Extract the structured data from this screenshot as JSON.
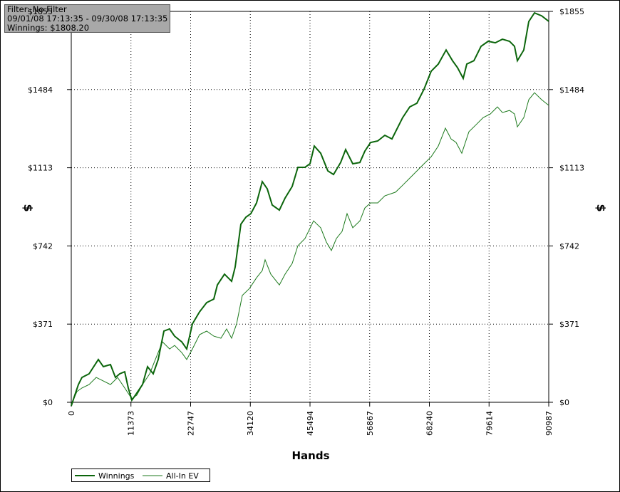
{
  "chart_data": {
    "type": "line",
    "info": [
      "Filter: No Filter",
      "09/01/08 17:13:35 - 09/30/08 17:13:35",
      "Winnings: $1808.20"
    ],
    "xlabel": "Hands",
    "ylabel": "$",
    "y2label": "$",
    "xlim": [
      0,
      90987
    ],
    "xticks": [
      0,
      11373,
      22747,
      34120,
      45494,
      56867,
      68240,
      79614,
      90987
    ],
    "ylim": [
      0,
      1855
    ],
    "yticks": [
      {
        "value": 0,
        "label": "$0"
      },
      {
        "value": 371,
        "label": "$371"
      },
      {
        "value": 742,
        "label": "$742"
      },
      {
        "value": 1113,
        "label": "$1113"
      },
      {
        "value": 1484,
        "label": "$1484"
      },
      {
        "value": 1855,
        "label": "$1855"
      }
    ],
    "grid": true,
    "series": [
      {
        "name": "Winnings",
        "color": "#0b650b",
        "width": 2,
        "x": [
          0,
          679,
          1358,
          2037,
          3395,
          5160,
          6111,
          7469,
          8420,
          9234,
          10185,
          10864,
          11543,
          12222,
          13580,
          14531,
          15617,
          16568,
          17654,
          18740,
          19691,
          21049,
          22000,
          23086,
          24444,
          25802,
          27160,
          27839,
          29197,
          30555,
          31234,
          32320,
          33271,
          34222,
          35308,
          36394,
          37345,
          38296,
          39654,
          40740,
          42098,
          43184,
          44542,
          45493,
          46308,
          47530,
          48888,
          49974,
          51332,
          52283,
          53641,
          54999,
          55950,
          57036,
          58394,
          59752,
          61110,
          63147,
          64505,
          65863,
          67221,
          68579,
          69937,
          71431,
          72653,
          73604,
          74690,
          75369,
          76727,
          78085,
          79443,
          80801,
          82159,
          83517,
          84468,
          85011,
          86233,
          87184,
          88270,
          89628,
          90987
        ],
        "values": [
          -17,
          34,
          84,
          118,
          135,
          203,
          169,
          179,
          118,
          135,
          145,
          68,
          10,
          34,
          84,
          169,
          135,
          203,
          338,
          348,
          314,
          287,
          253,
          372,
          429,
          473,
          490,
          557,
          608,
          574,
          642,
          845,
          878,
          895,
          946,
          1047,
          1013,
          936,
          912,
          969,
          1024,
          1115,
          1115,
          1132,
          1216,
          1182,
          1098,
          1081,
          1138,
          1199,
          1132,
          1138,
          1192,
          1233,
          1240,
          1267,
          1250,
          1351,
          1402,
          1419,
          1486,
          1571,
          1605,
          1672,
          1621,
          1588,
          1537,
          1605,
          1621,
          1689,
          1713,
          1706,
          1723,
          1713,
          1689,
          1621,
          1672,
          1807,
          1848,
          1834,
          1808
        ]
      },
      {
        "name": "All-In EV",
        "color": "#1d7a1d",
        "width": 1,
        "x": [
          0,
          1086,
          2037,
          3395,
          4753,
          6111,
          7469,
          8827,
          10185,
          11543,
          12494,
          13580,
          14938,
          16296,
          17382,
          18740,
          19691,
          21049,
          22000,
          23086,
          24444,
          25802,
          27160,
          28518,
          29604,
          30555,
          31506,
          32592,
          33950,
          35308,
          36394,
          36938,
          38024,
          39654,
          40740,
          42098,
          43184,
          44542,
          46172,
          47530,
          48616,
          49567,
          50518,
          51604,
          52555,
          53641,
          54999,
          55950,
          57036,
          58394,
          59752,
          61789,
          63147,
          65184,
          67221,
          68579,
          69937,
          71295,
          72381,
          73332,
          74418,
          75776,
          77134,
          78492,
          79850,
          81208,
          82159,
          83517,
          84468,
          85011,
          86233,
          87184,
          88270,
          89628,
          90987
        ],
        "values": [
          -10,
          51,
          68,
          84,
          118,
          101,
          84,
          118,
          68,
          17,
          34,
          84,
          135,
          220,
          287,
          253,
          270,
          236,
          203,
          253,
          321,
          338,
          314,
          304,
          348,
          304,
          372,
          507,
          540,
          591,
          625,
          676,
          608,
          557,
          608,
          659,
          743,
          777,
          861,
          828,
          760,
          720,
          777,
          811,
          895,
          828,
          861,
          922,
          946,
          946,
          980,
          997,
          1030,
          1081,
          1132,
          1165,
          1216,
          1301,
          1250,
          1233,
          1182,
          1284,
          1317,
          1351,
          1368,
          1402,
          1375,
          1385,
          1368,
          1307,
          1351,
          1436,
          1469,
          1436,
          1409
        ]
      }
    ]
  }
}
